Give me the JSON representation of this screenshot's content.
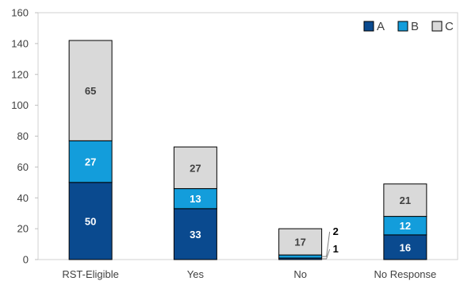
{
  "chart_data": {
    "type": "bar",
    "stacked": true,
    "categories": [
      "RST-Eligible",
      "Yes",
      "No",
      "No Response"
    ],
    "series": [
      {
        "name": "A",
        "values": [
          50,
          33,
          1,
          16
        ],
        "color": "#0a4a8f"
      },
      {
        "name": "B",
        "values": [
          27,
          13,
          2,
          12
        ],
        "color": "#139ddb"
      },
      {
        "name": "C",
        "values": [
          65,
          27,
          17,
          21
        ],
        "color": "#d9d9d9"
      }
    ],
    "ylim": [
      0,
      160
    ],
    "yticks": [
      0,
      20,
      40,
      60,
      80,
      100,
      120,
      140,
      160
    ],
    "legend_position": "top-right",
    "grid": false
  }
}
